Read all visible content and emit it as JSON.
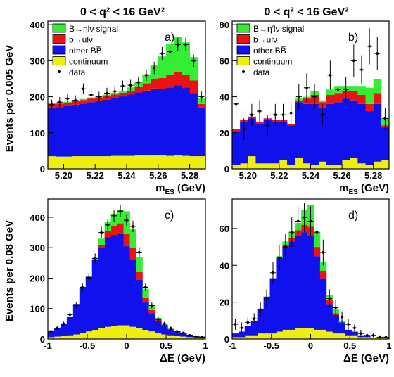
{
  "y_axis_titles": {
    "top": "Events per 0.005 GeV",
    "bottom": "Events per 0.08 GeV"
  },
  "panel_titles": {
    "a": "0 < q² < 16 GeV²",
    "b": "0 < q² < 16 GeV²"
  },
  "colors": {
    "signal": "#33ee33",
    "bulnu": "#ee1111",
    "other_bb": "#1111ee",
    "continuum": "#eeee11",
    "data": "#000000"
  },
  "chart_data": [
    {
      "id": "a",
      "type": "histogram",
      "stacked": true,
      "label": "a)",
      "title": "0 < q² < 16 GeV²",
      "xlabel": "m_ES (GeV)",
      "xlim": [
        5.19,
        5.29
      ],
      "ylim": [
        0,
        410
      ],
      "xticks": [
        "5.20",
        "5.22",
        "5.24",
        "5.26",
        "5.28"
      ],
      "yticks": [
        "0",
        "100",
        "200",
        "300",
        "400"
      ],
      "legend": [
        "B→ηlν signal",
        "b→ulν",
        "other BB̅",
        "continuum",
        "data"
      ],
      "legend_position": "top-left",
      "bins": [
        5.19,
        5.195,
        5.2,
        5.205,
        5.21,
        5.215,
        5.22,
        5.225,
        5.23,
        5.235,
        5.24,
        5.245,
        5.25,
        5.255,
        5.26,
        5.265,
        5.27,
        5.275,
        5.28,
        5.285,
        5.29
      ],
      "series": [
        {
          "name": "continuum",
          "values": [
            35,
            34,
            34,
            35,
            35,
            35,
            35,
            35,
            36,
            36,
            36,
            37,
            37,
            38,
            37,
            36,
            37,
            36,
            35,
            35
          ]
        },
        {
          "name": "other BB̅",
          "values": [
            135,
            137,
            140,
            143,
            146,
            150,
            153,
            157,
            160,
            165,
            170,
            175,
            180,
            185,
            185,
            190,
            195,
            190,
            175,
            135
          ]
        },
        {
          "name": "b→ulν",
          "values": [
            10,
            10,
            10,
            10,
            10,
            10,
            10,
            10,
            10,
            10,
            10,
            15,
            20,
            25,
            30,
            35,
            38,
            35,
            35,
            10
          ]
        },
        {
          "name": "B→ηlν signal",
          "values": [
            2,
            2,
            2,
            2,
            3,
            3,
            3,
            4,
            5,
            6,
            10,
            15,
            25,
            40,
            60,
            85,
            95,
            90,
            65,
            15
          ]
        }
      ],
      "data": {
        "x": [
          5.1925,
          5.1975,
          5.2025,
          5.2075,
          5.2125,
          5.2175,
          5.2225,
          5.2275,
          5.2325,
          5.2375,
          5.2425,
          5.2475,
          5.2525,
          5.2575,
          5.2625,
          5.2675,
          5.2725,
          5.2775,
          5.2825,
          5.2875
        ],
        "y": [
          178,
          185,
          195,
          190,
          222,
          205,
          200,
          210,
          215,
          230,
          232,
          240,
          260,
          280,
          320,
          325,
          345,
          345,
          300,
          200
        ],
        "err": [
          14,
          14,
          14,
          14,
          15,
          14,
          14,
          15,
          15,
          15,
          15,
          16,
          16,
          17,
          18,
          18,
          19,
          19,
          17,
          14
        ]
      }
    },
    {
      "id": "b",
      "type": "histogram",
      "stacked": true,
      "label": "b)",
      "title": "0 < q² < 16 GeV²",
      "xlabel": "m_ES (GeV)",
      "xlim": [
        5.19,
        5.29
      ],
      "ylim": [
        0,
        82
      ],
      "xticks": [
        "5.20",
        "5.22",
        "5.24",
        "5.26",
        "5.28"
      ],
      "yticks": [
        "0",
        "20",
        "40",
        "60",
        "80"
      ],
      "legend": [
        "B→η′lν signal",
        "b→ulν",
        "other BB̅",
        "continuum",
        "data"
      ],
      "legend_position": "top-left",
      "bins": [
        5.19,
        5.195,
        5.2,
        5.205,
        5.21,
        5.215,
        5.22,
        5.225,
        5.23,
        5.235,
        5.24,
        5.245,
        5.25,
        5.255,
        5.26,
        5.265,
        5.27,
        5.275,
        5.28,
        5.285,
        5.29
      ],
      "series": [
        {
          "name": "continuum",
          "values": [
            2,
            3,
            7,
            3,
            3,
            3,
            5,
            2,
            6,
            3,
            2,
            4,
            2,
            2,
            5,
            6,
            3,
            2,
            4,
            5
          ]
        },
        {
          "name": "other BB̅",
          "values": [
            19,
            23,
            21,
            22,
            24,
            23,
            21,
            22,
            31,
            33,
            34,
            30,
            34,
            35,
            34,
            32,
            33,
            30,
            32,
            18
          ]
        },
        {
          "name": "b→ulν",
          "values": [
            1,
            1,
            1,
            1,
            1,
            1,
            1,
            1,
            1,
            3,
            5,
            3,
            5,
            5,
            4,
            5,
            5,
            4,
            6,
            1
          ]
        },
        {
          "name": "B→η′lν signal",
          "values": [
            0,
            0,
            0,
            0,
            0,
            0,
            0,
            0,
            1,
            1,
            2,
            1,
            3,
            4,
            3,
            3,
            5,
            9,
            8,
            4
          ]
        }
      ],
      "data": {
        "x": [
          5.1925,
          5.1975,
          5.2025,
          5.2075,
          5.2125,
          5.2175,
          5.2225,
          5.2275,
          5.2325,
          5.2375,
          5.2425,
          5.2475,
          5.2525,
          5.2575,
          5.2625,
          5.2675,
          5.2725,
          5.2775,
          5.2825,
          5.2875
        ],
        "y": [
          36,
          22,
          30,
          32,
          24,
          30,
          30,
          31,
          40,
          45,
          40,
          30,
          52,
          44,
          44,
          60,
          55,
          68,
          64,
          28
        ],
        "err": [
          7,
          6,
          6,
          6,
          6,
          6,
          6,
          6,
          7,
          8,
          7,
          6,
          8,
          7,
          7,
          9,
          8,
          10,
          9,
          6
        ]
      }
    },
    {
      "id": "c",
      "type": "histogram",
      "stacked": true,
      "label": "c)",
      "xlabel": "ΔE (GeV)",
      "xlim": [
        -1,
        1
      ],
      "ylim": [
        0,
        460
      ],
      "xticks": [
        "-1",
        "-0.5",
        "0",
        "0.5",
        "1"
      ],
      "yticks": [
        "0",
        "100",
        "200",
        "300",
        "400"
      ],
      "bins": [
        -1,
        -0.92,
        -0.84,
        -0.76,
        -0.68,
        -0.6,
        -0.52,
        -0.44,
        -0.36,
        -0.28,
        -0.2,
        -0.12,
        -0.04,
        0.04,
        0.12,
        0.2,
        0.28,
        0.36,
        0.44,
        0.52,
        0.6,
        0.68,
        0.76,
        0.84,
        0.92,
        1.0
      ],
      "series": [
        {
          "name": "continuum",
          "values": [
            6,
            8,
            10,
            12,
            15,
            20,
            25,
            30,
            35,
            40,
            42,
            45,
            45,
            40,
            35,
            30,
            25,
            20,
            15,
            12,
            10,
            8,
            6,
            5,
            4
          ]
        },
        {
          "name": "other BB̅",
          "values": [
            22,
            28,
            40,
            60,
            100,
            150,
            180,
            230,
            265,
            295,
            300,
            300,
            260,
            220,
            160,
            90,
            60,
            40,
            30,
            20,
            15,
            12,
            8,
            6,
            4
          ]
        },
        {
          "name": "b→ulν",
          "values": [
            0,
            0,
            0,
            0,
            0,
            0,
            0,
            2,
            10,
            20,
            30,
            35,
            40,
            40,
            25,
            15,
            10,
            5,
            2,
            0,
            0,
            0,
            0,
            0,
            0
          ]
        },
        {
          "name": "B→ηlν signal",
          "values": [
            0,
            0,
            0,
            0,
            0,
            0,
            2,
            5,
            20,
            30,
            40,
            45,
            75,
            60,
            50,
            30,
            15,
            5,
            2,
            0,
            0,
            0,
            0,
            0,
            0
          ]
        }
      ],
      "data": {
        "x": [
          -0.96,
          -0.88,
          -0.8,
          -0.72,
          -0.64,
          -0.56,
          -0.48,
          -0.4,
          -0.32,
          -0.24,
          -0.16,
          -0.08,
          0.0,
          0.08,
          0.16,
          0.24,
          0.32,
          0.4,
          0.48,
          0.56,
          0.64,
          0.72,
          0.8,
          0.88,
          0.96
        ],
        "y": [
          25,
          36,
          50,
          80,
          110,
          170,
          200,
          265,
          350,
          375,
          405,
          420,
          390,
          370,
          285,
          170,
          110,
          65,
          50,
          35,
          25,
          20,
          12,
          8,
          6
        ],
        "err": [
          5,
          6,
          7,
          9,
          10,
          13,
          14,
          16,
          19,
          19,
          20,
          20,
          20,
          19,
          17,
          13,
          10,
          8,
          7,
          6,
          5,
          4,
          3,
          3,
          2
        ]
      }
    },
    {
      "id": "d",
      "type": "histogram",
      "stacked": true,
      "label": "d)",
      "xlabel": "ΔE (GeV)",
      "xlim": [
        -1,
        1
      ],
      "ylim": [
        0,
        76
      ],
      "xticks": [
        "-1",
        "-0.5",
        "0",
        "0.5",
        "1"
      ],
      "yticks": [
        "0",
        "20",
        "40",
        "60"
      ],
      "bins": [
        -1,
        -0.92,
        -0.84,
        -0.76,
        -0.68,
        -0.6,
        -0.52,
        -0.44,
        -0.36,
        -0.28,
        -0.2,
        -0.12,
        -0.04,
        0.04,
        0.12,
        0.2,
        0.28,
        0.36,
        0.44,
        0.52,
        0.6,
        0.68,
        0.76,
        0.84,
        0.92,
        1.0
      ],
      "series": [
        {
          "name": "continuum",
          "values": [
            1,
            1,
            2,
            2,
            3,
            3,
            3,
            4,
            5,
            5,
            6,
            6,
            6,
            5,
            5,
            4,
            3,
            3,
            2,
            2,
            1,
            1,
            1,
            1,
            1
          ]
        },
        {
          "name": "other BB̅",
          "values": [
            2,
            3,
            5,
            8,
            13,
            20,
            30,
            40,
            45,
            48,
            50,
            52,
            50,
            40,
            28,
            15,
            10,
            6,
            3,
            2,
            1,
            1,
            0,
            0,
            0
          ]
        },
        {
          "name": "b→ulν",
          "values": [
            0,
            0,
            0,
            0,
            0,
            0,
            0,
            0,
            1,
            2,
            3,
            4,
            5,
            5,
            4,
            2,
            1,
            0,
            0,
            0,
            0,
            0,
            0,
            0,
            0
          ]
        },
        {
          "name": "B→η′lν signal",
          "values": [
            0,
            0,
            0,
            0,
            0,
            0,
            0,
            1,
            2,
            3,
            4,
            8,
            12,
            8,
            5,
            3,
            2,
            1,
            0,
            0,
            0,
            0,
            0,
            0,
            0
          ]
        }
      ],
      "data": {
        "x": [
          -0.96,
          -0.88,
          -0.8,
          -0.72,
          -0.64,
          -0.56,
          -0.48,
          -0.4,
          -0.32,
          -0.24,
          -0.16,
          -0.08,
          0.0,
          0.08,
          0.16,
          0.24,
          0.32,
          0.4,
          0.48,
          0.56,
          0.64,
          0.72,
          0.8,
          0.88,
          0.96
        ],
        "y": [
          8,
          6,
          9,
          11,
          16,
          22,
          36,
          44,
          50,
          58,
          64,
          66,
          64,
          58,
          47,
          22,
          17,
          12,
          8,
          6,
          3,
          2,
          2,
          1,
          1
        ],
        "err": [
          3,
          3,
          3,
          3,
          4,
          5,
          6,
          7,
          7,
          8,
          8,
          8,
          8,
          8,
          7,
          5,
          4,
          3,
          3,
          2,
          2,
          1,
          1,
          1,
          1
        ]
      }
    }
  ]
}
